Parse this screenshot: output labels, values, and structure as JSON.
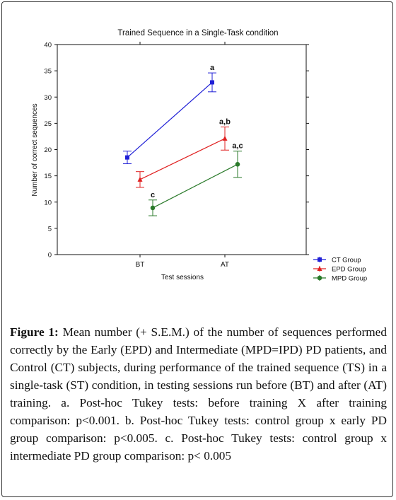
{
  "chart_data": {
    "type": "line",
    "title": "Trained Sequence in a Single-Task condition",
    "xlabel": "Test sessions",
    "ylabel": "Number of correct sequences",
    "categories": [
      "BT",
      "AT"
    ],
    "ylim": [
      0,
      40
    ],
    "yticks": [
      0,
      5,
      10,
      15,
      20,
      25,
      30,
      35,
      40
    ],
    "grid": false,
    "legend_position": "bottom-right outside",
    "series": [
      {
        "name": "CT Group",
        "color": "#1f1fd6",
        "marker": "square",
        "values": [
          18.5,
          32.8
        ],
        "err": [
          1.2,
          1.8
        ],
        "labels": [
          "",
          "a"
        ]
      },
      {
        "name": "EPD Group",
        "color": "#e02020",
        "marker": "triangle",
        "values": [
          14.3,
          22.1
        ],
        "err": [
          1.5,
          2.2
        ],
        "labels": [
          "",
          "a,b"
        ]
      },
      {
        "name": "MPD Group",
        "color": "#2a7a2a",
        "marker": "circle",
        "values": [
          8.9,
          17.2
        ],
        "err": [
          1.5,
          2.5
        ],
        "labels": [
          "c",
          "a,c"
        ]
      }
    ]
  },
  "caption": {
    "lead": "Figure 1:",
    "text": "Mean number (+ S.E.M.) of the number of sequences performed correctly by the Early (EPD) and Intermediate (MPD=IPD) PD patients, and Control (CT) subjects, during performance of the trained sequence (TS) in a single-task (ST) condition, in testing sessions run before (BT) and after (AT) training. a. Post-hoc Tukey tests: before training X after training comparison: p<0.001. b. Post-hoc Tukey tests: control group x early PD group comparison: p<0.005. c. Post-hoc Tukey tests: control group x intermediate PD group comparison: p< 0.005"
  }
}
